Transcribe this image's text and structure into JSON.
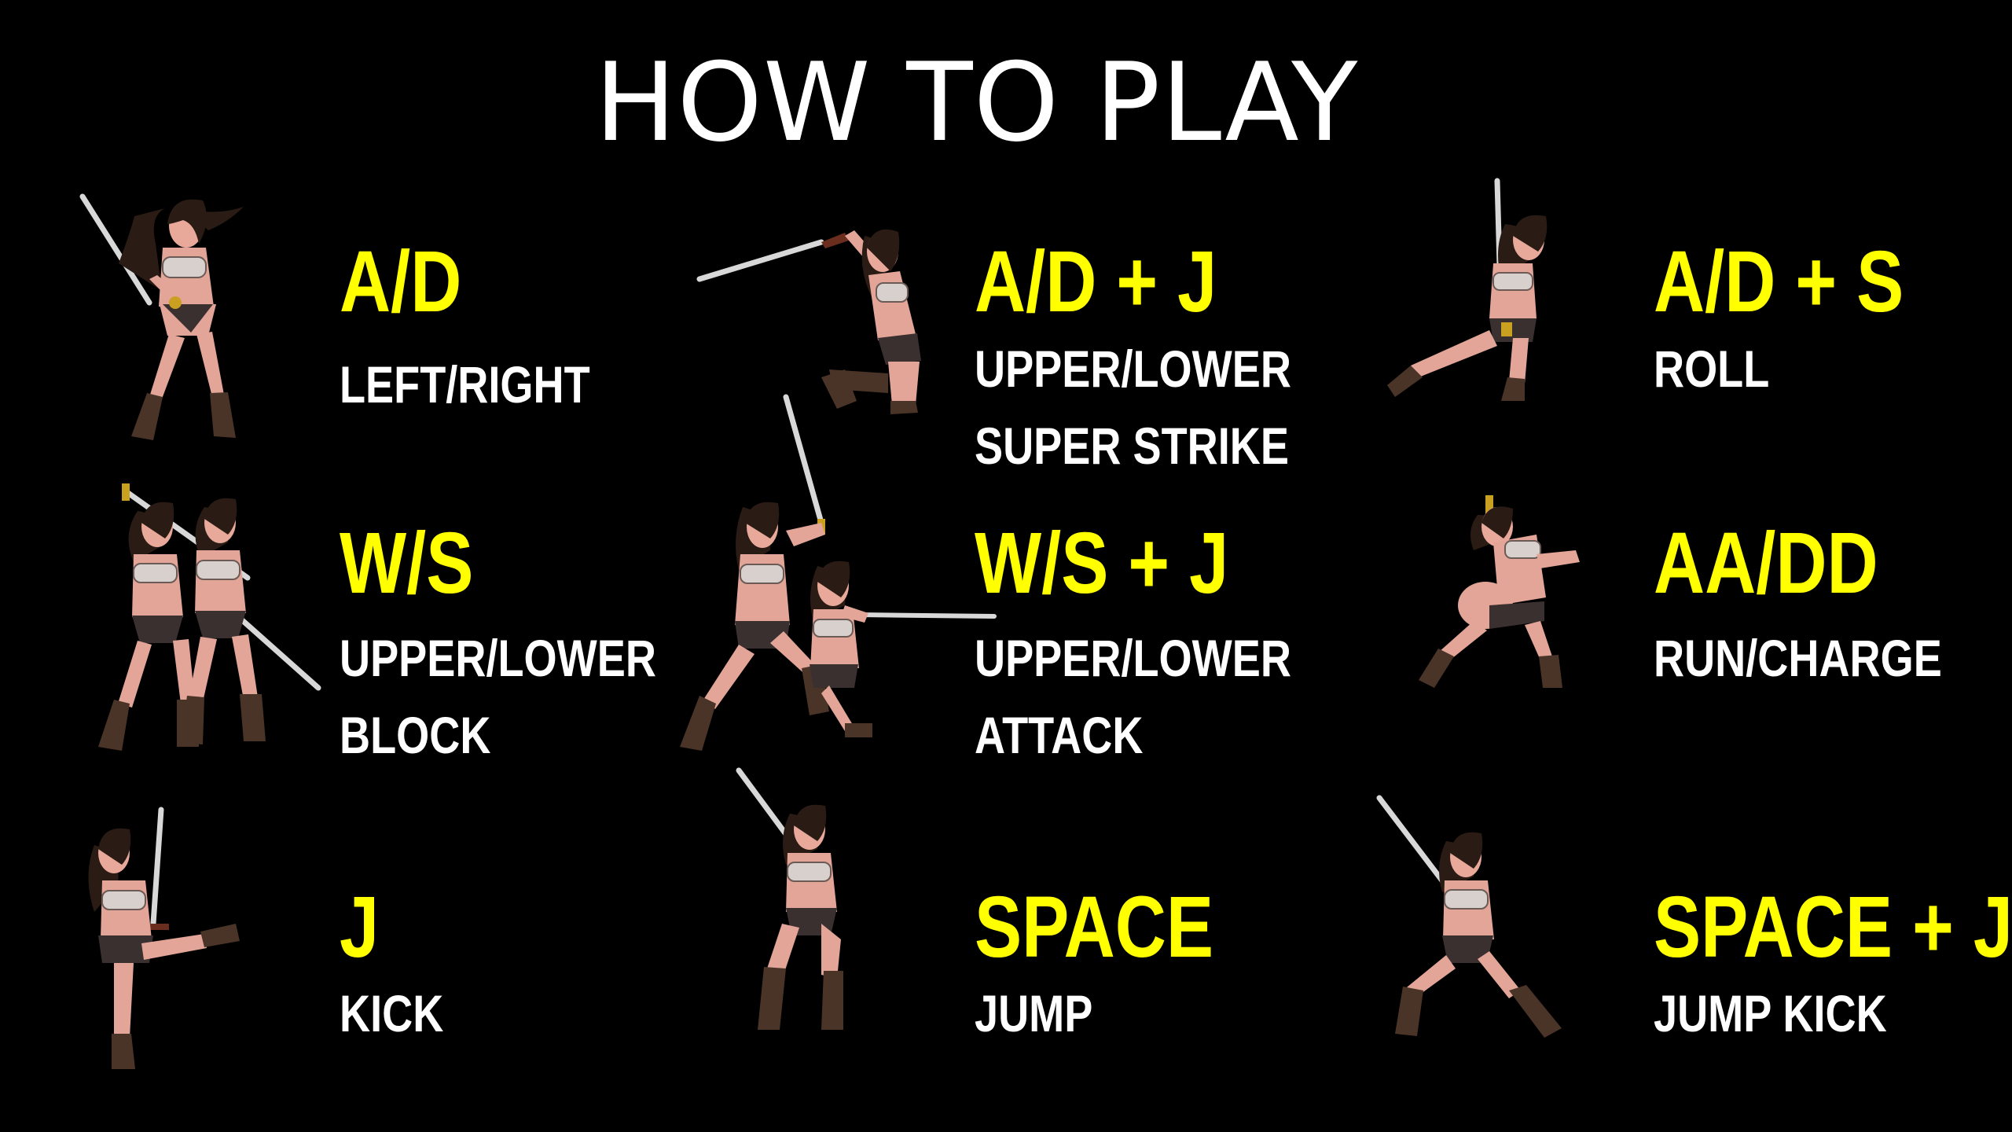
{
  "title": "HOW TO PLAY",
  "colors": {
    "background": "#000000",
    "key_text": "#ffff00",
    "action_text": "#ffffff"
  },
  "controls": [
    {
      "keys": "A/D",
      "action_lines": [
        "LEFT/RIGHT"
      ],
      "sprite": "warrior-sword-raised-idle"
    },
    {
      "keys": "A/D + J",
      "action_lines": [
        "UPPER/LOWER",
        "SUPER STRIKE"
      ],
      "sprite": "warrior-jump-strike"
    },
    {
      "keys": "A/D + S",
      "action_lines": [
        "ROLL"
      ],
      "sprite": "warrior-roll"
    },
    {
      "keys": "W/S",
      "action_lines": [
        "UPPER/LOWER",
        "BLOCK"
      ],
      "sprite": "warrior-block"
    },
    {
      "keys": "W/S + J",
      "action_lines": [
        "UPPER/LOWER",
        "ATTACK"
      ],
      "sprite": "warrior-attack"
    },
    {
      "keys": "AA/DD",
      "action_lines": [
        "RUN/CHARGE"
      ],
      "sprite": "warrior-run"
    },
    {
      "keys": "J",
      "action_lines": [
        "KICK"
      ],
      "sprite": "warrior-kick"
    },
    {
      "keys": "SPACE",
      "action_lines": [
        "JUMP"
      ],
      "sprite": "warrior-jump-crouch"
    },
    {
      "keys": "SPACE + J",
      "action_lines": [
        "JUMP KICK"
      ],
      "sprite": "warrior-jump-kick"
    }
  ]
}
